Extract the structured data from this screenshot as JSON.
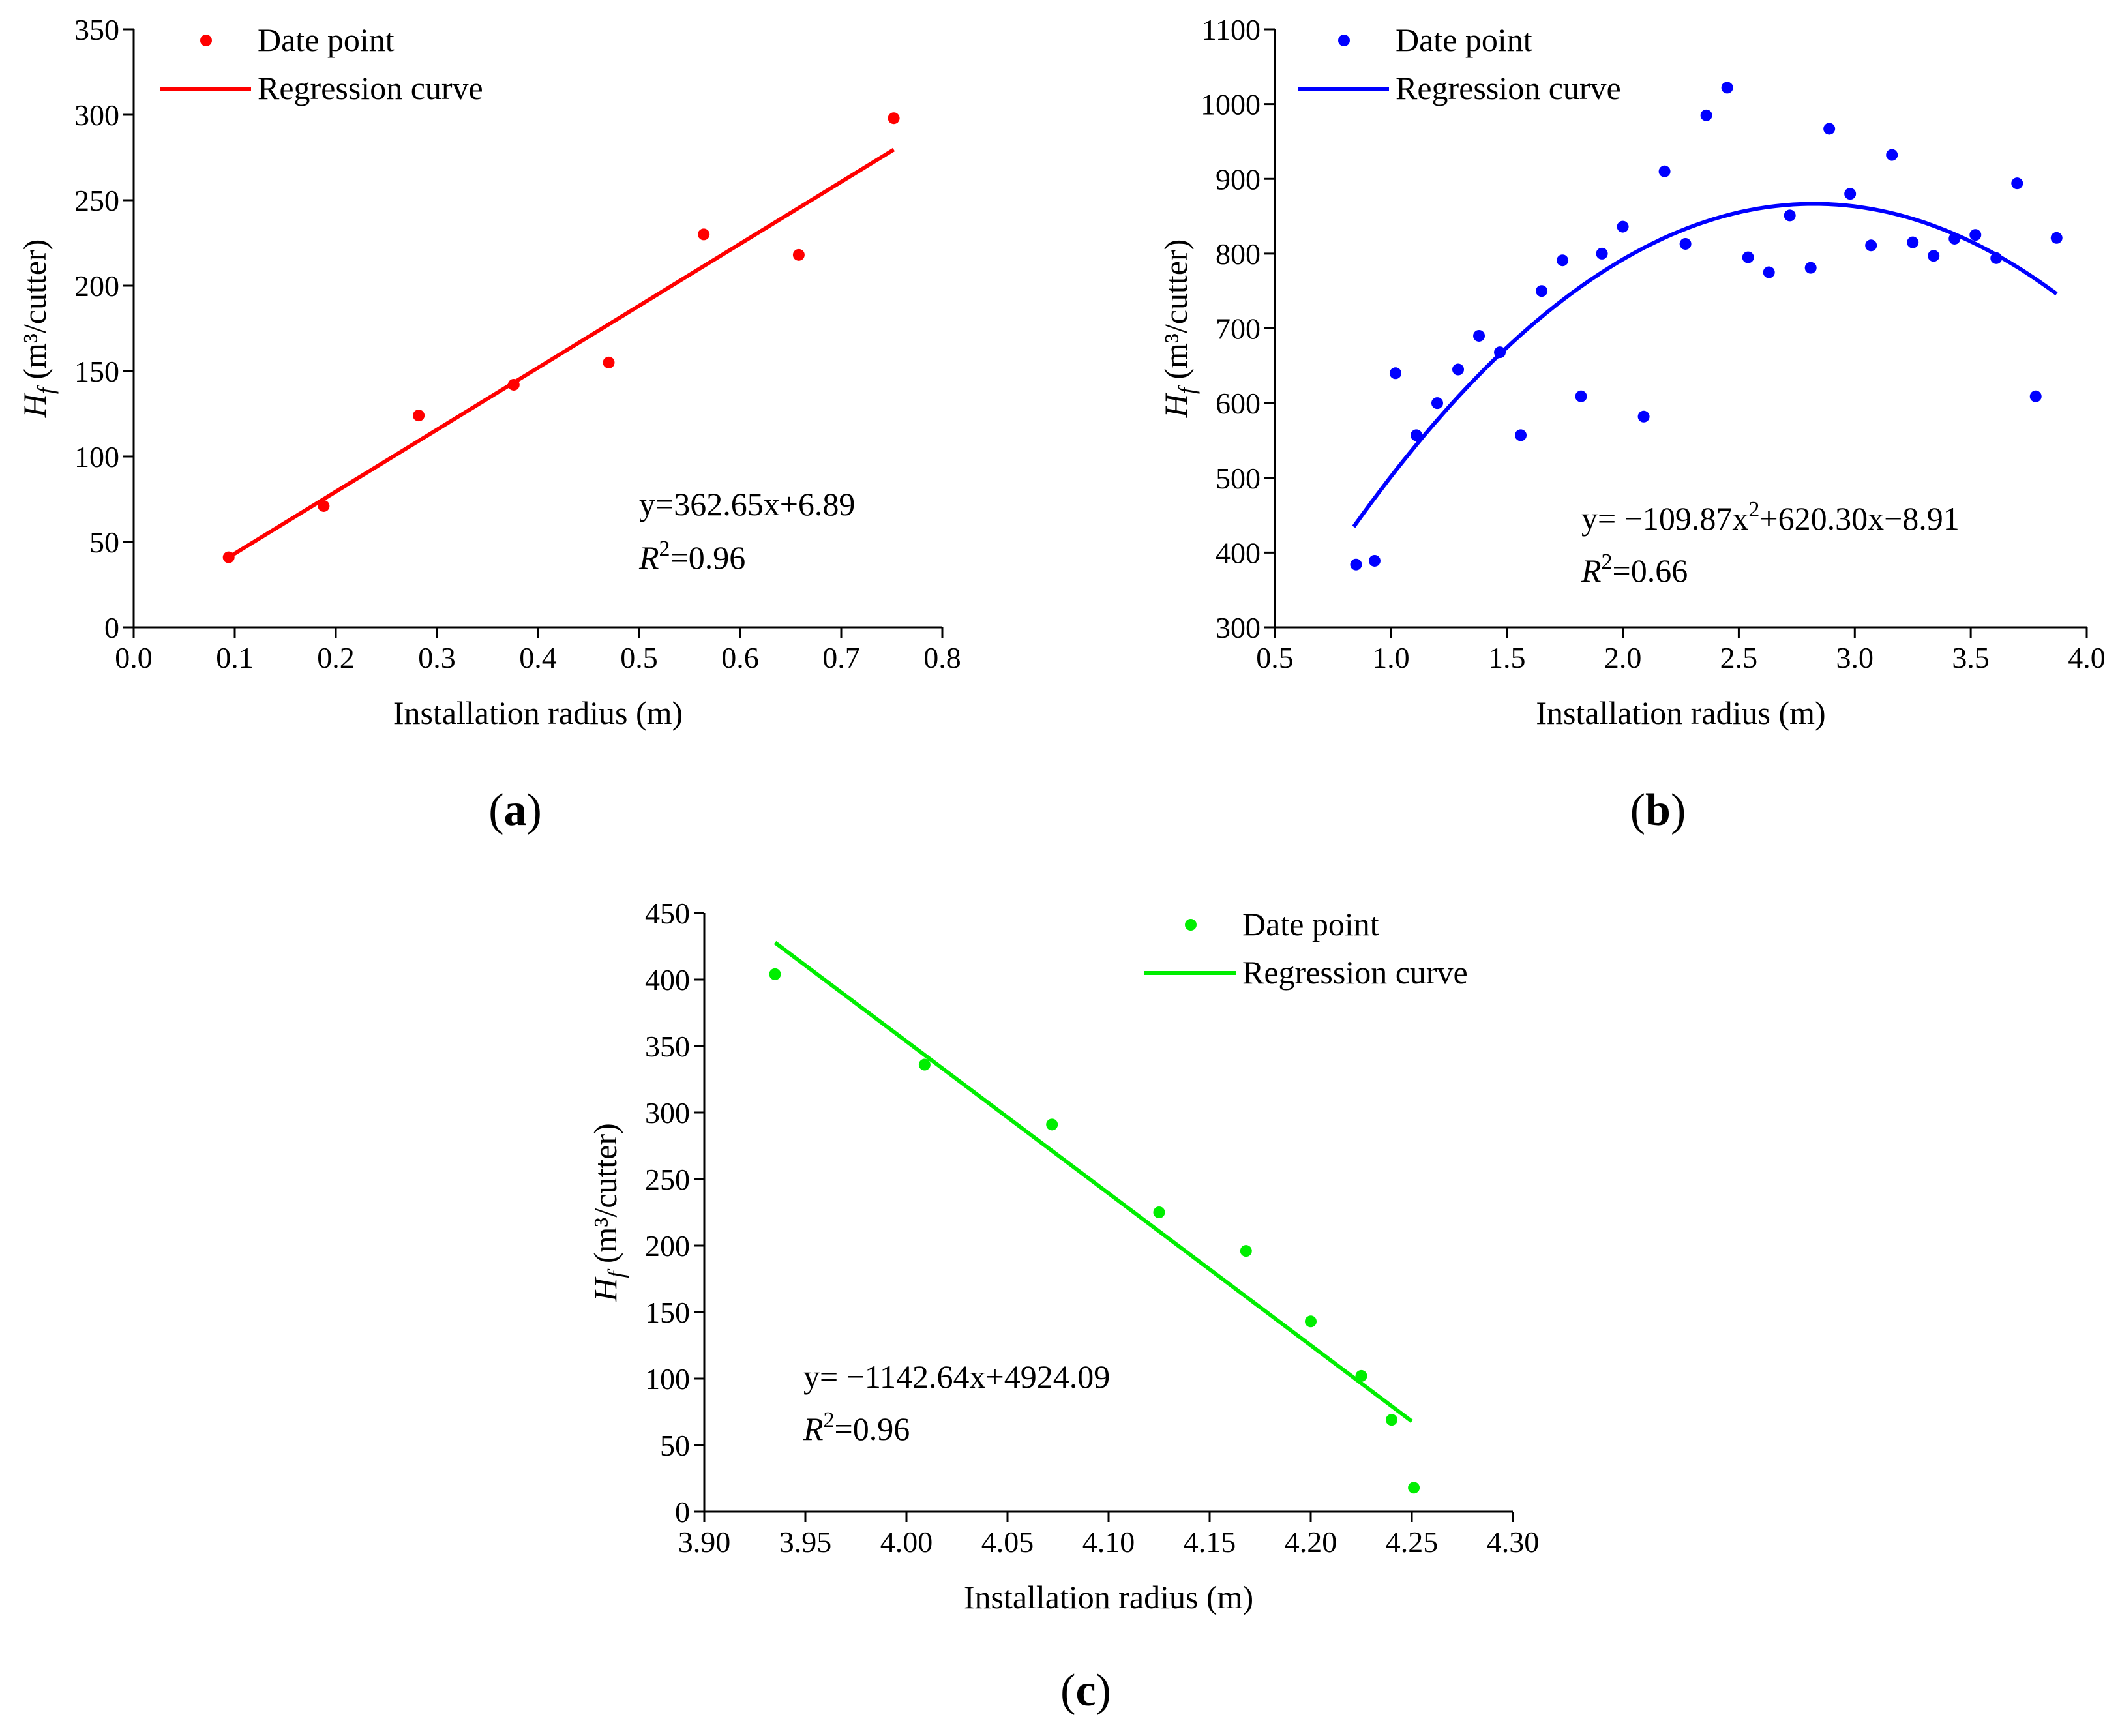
{
  "chart_data": [
    {
      "type": "scatter",
      "panel": "(a)",
      "panel_letter": "a",
      "color": "#ff0000",
      "xlabel": "Installation radius (m)",
      "ylabel_symbol": "H",
      "ylabel_subscript": "f",
      "ylabel_unit": " (m³/cutter)",
      "xlim": [
        0.0,
        0.8
      ],
      "ylim": [
        0,
        350
      ],
      "xticks": [
        "0.0",
        "0.1",
        "0.2",
        "0.3",
        "0.4",
        "0.5",
        "0.6",
        "0.7",
        "0.8"
      ],
      "yticks": [
        "0",
        "50",
        "100",
        "150",
        "200",
        "250",
        "300",
        "350"
      ],
      "legend": {
        "position": "top-left",
        "points_label": "Date point",
        "curve_label": "Regression curve"
      },
      "points": {
        "x": [
          0.094,
          0.188,
          0.282,
          0.376,
          0.47,
          0.564,
          0.658,
          0.752
        ],
        "y": [
          41,
          71,
          124,
          142,
          155,
          230,
          218,
          298
        ]
      },
      "fit": {
        "kind": "linear",
        "coeffs": [
          362.65,
          6.89
        ],
        "x_range": [
          0.094,
          0.752
        ]
      },
      "equation_text": "y=362.65x+6.89",
      "r2_symbol": "R",
      "r2_exponent": "2",
      "r2_value": "=0.96"
    },
    {
      "type": "scatter",
      "panel": "(b)",
      "panel_letter": "b",
      "color": "#0000ff",
      "xlabel": "Installation radius (m)",
      "ylabel_symbol": "H",
      "ylabel_subscript": "f",
      "ylabel_unit": " (m³/cutter)",
      "xlim": [
        0.5,
        4.0
      ],
      "ylim": [
        300,
        1100
      ],
      "xticks": [
        "0.5",
        "1.0",
        "1.5",
        "2.0",
        "2.5",
        "3.0",
        "3.5",
        "4.0"
      ],
      "yticks": [
        "300",
        "400",
        "500",
        "600",
        "700",
        "800",
        "900",
        "1000",
        "1100"
      ],
      "legend": {
        "position": "top-left",
        "points_label": "Date point",
        "curve_label": "Regression curve"
      },
      "points": {
        "x": [
          0.85,
          0.93,
          1.02,
          1.11,
          1.2,
          1.29,
          1.38,
          1.47,
          1.56,
          1.65,
          1.74,
          1.82,
          1.91,
          2.0,
          2.09,
          2.18,
          2.27,
          2.36,
          2.45,
          2.54,
          2.63,
          2.72,
          2.81,
          2.89,
          2.98,
          3.07,
          3.16,
          3.25,
          3.34,
          3.43,
          3.52,
          3.61,
          3.7,
          3.78,
          3.87
        ],
        "y": [
          384,
          389,
          640,
          557,
          600,
          645,
          690,
          668,
          557,
          750,
          791,
          609,
          800,
          836,
          582,
          910,
          813,
          985,
          1022,
          795,
          775,
          851,
          781,
          967,
          880,
          811,
          932,
          815,
          797,
          820,
          825,
          794,
          894,
          609,
          821
        ]
      },
      "fit": {
        "kind": "quadratic",
        "coeffs": [
          -109.87,
          620.3,
          -8.91
        ],
        "x_range": [
          0.84,
          3.87
        ]
      },
      "equation_text": "y= −109.87x",
      "equation_sup": "2",
      "equation_rest": "+620.30x−8.91",
      "r2_symbol": "R",
      "r2_exponent": "2",
      "r2_value": "=0.66"
    },
    {
      "type": "scatter",
      "panel": "(c)",
      "panel_letter": "c",
      "color": "#00ee00",
      "xlabel": "Installation radius (m)",
      "ylabel_symbol": "H",
      "ylabel_subscript": "f",
      "ylabel_unit": " (m³/cutter)",
      "xlim": [
        3.9,
        4.3
      ],
      "ylim": [
        0,
        450
      ],
      "xticks": [
        "3.90",
        "3.95",
        "4.00",
        "4.05",
        "4.10",
        "4.15",
        "4.20",
        "4.25",
        "4.30"
      ],
      "yticks": [
        "0",
        "50",
        "100",
        "150",
        "200",
        "250",
        "300",
        "350",
        "400",
        "450"
      ],
      "legend": {
        "position": "top-right",
        "points_label": "Date point",
        "curve_label": "Regression curve"
      },
      "points": {
        "x": [
          3.935,
          4.009,
          4.072,
          4.125,
          4.168,
          4.2,
          4.225,
          4.24,
          4.251
        ],
        "y": [
          404,
          336,
          291,
          225,
          196,
          143,
          102,
          69,
          18
        ]
      },
      "fit": {
        "kind": "linear",
        "coeffs": [
          -1142.64,
          4924.09
        ],
        "x_range": [
          3.935,
          4.25
        ]
      },
      "equation_text": "y= −1142.64x+4924.09",
      "r2_symbol": "R",
      "r2_exponent": "2",
      "r2_value": "=0.96"
    }
  ]
}
